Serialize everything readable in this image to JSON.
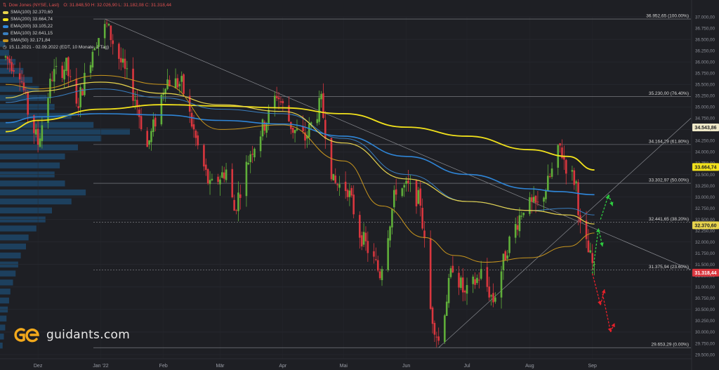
{
  "instrument": {
    "title": "Dow Jones (NYSE, Last)",
    "ohlc": "O: 31.848,50  H: 32.026,90  L: 31.182,08  C: 31.318,44",
    "period": "15.11.2021 - 02.09.2022  (EDT, 10 Monate, 1 Tag)"
  },
  "indicators": [
    {
      "label": "SMA(100)  32.370,60",
      "color": "#e8d44d"
    },
    {
      "label": "SMA(200)  33.664,74",
      "color": "#f2e21c"
    },
    {
      "label": "EMA(200)  33.105,22",
      "color": "#2f86d8"
    },
    {
      "label": "EMA(100)  32.641,15",
      "color": "#3a7fc0"
    },
    {
      "label": "SMA(50)  32.171,84",
      "color": "#c9961e"
    }
  ],
  "logo": {
    "text": "guidants.com",
    "icon": "guidants-logo-icon"
  },
  "colors": {
    "up": "#5fae3a",
    "down": "#d9363e",
    "arrow_up": "#2ecc40",
    "arrow_down": "#e8202a"
  },
  "chart_data": {
    "type": "candlestick",
    "x_range": [
      "2021-11-15",
      "2022-09-02"
    ],
    "ylim": [
      29500,
      37000
    ],
    "x_ticks": [
      {
        "label": "Dez",
        "date": "2021-12-01"
      },
      {
        "label": "Jan '22",
        "date": "2022-01-01"
      },
      {
        "label": "Feb",
        "date": "2022-02-01"
      },
      {
        "label": "Mär",
        "date": "2022-03-01"
      },
      {
        "label": "Apr",
        "date": "2022-04-01"
      },
      {
        "label": "Mai",
        "date": "2022-05-01"
      },
      {
        "label": "Jun",
        "date": "2022-06-01"
      },
      {
        "label": "Jul",
        "date": "2022-07-01"
      },
      {
        "label": "Aug",
        "date": "2022-08-01"
      },
      {
        "label": "Sep",
        "date": "2022-09-01"
      }
    ],
    "y_ticks": [
      {
        "value": 37000,
        "label": "37.000,00"
      },
      {
        "value": 36500,
        "label": "36.500,00"
      },
      {
        "value": 36000,
        "label": "36.000,00"
      },
      {
        "value": 35500,
        "label": "35.500,00"
      },
      {
        "value": 35000,
        "label": "35.000,00"
      },
      {
        "value": 34500,
        "label": "34.500,00"
      },
      {
        "value": 34000,
        "label": "34.000,00"
      },
      {
        "value": 33500,
        "label": "33.500,00"
      },
      {
        "value": 33000,
        "label": "33.000,00"
      },
      {
        "value": 32500,
        "label": "32.500,00"
      },
      {
        "value": 32000,
        "label": "32.000,00"
      },
      {
        "value": 31500,
        "label": "31.500,00"
      },
      {
        "value": 31000,
        "label": "31.000,00"
      },
      {
        "value": 30500,
        "label": "30.500,00"
      },
      {
        "value": 30000,
        "label": "30.000,00"
      },
      {
        "value": 29500,
        "label": "29.500,00"
      }
    ],
    "y_ticks_minor": [
      {
        "value": 36750,
        "label": "36.750,00"
      },
      {
        "value": 36250,
        "label": "36.250,00"
      },
      {
        "value": 35750,
        "label": "35.750,00"
      },
      {
        "value": 35250,
        "label": "35.250,00"
      },
      {
        "value": 34750,
        "label": "34.750,00"
      },
      {
        "value": 34250,
        "label": "34.250,00"
      },
      {
        "value": 33750,
        "label": "33.750,00"
      },
      {
        "value": 33250,
        "label": "33.250,00"
      },
      {
        "value": 32750,
        "label": "32.750,00"
      },
      {
        "value": 32250,
        "label": "32.250,00"
      },
      {
        "value": 31750,
        "label": "31.750,00"
      },
      {
        "value": 31250,
        "label": "31.250,00"
      },
      {
        "value": 30750,
        "label": "30.750,00"
      },
      {
        "value": 30250,
        "label": "30.250,00"
      },
      {
        "value": 29750,
        "label": "29.750,00"
      }
    ],
    "fib_levels": [
      {
        "value": 36952.65,
        "label": "36.952,65 (100.00%)"
      },
      {
        "value": 35230.0,
        "label": "35.230,00 (76.40%)"
      },
      {
        "value": 34164.29,
        "label": "34.164,29 (61.80%)"
      },
      {
        "value": 33302.97,
        "label": "33.302,97 (50.00%)"
      },
      {
        "value": 32441.65,
        "label": "32.441,65 (38.20%)"
      },
      {
        "value": 31375.94,
        "label": "31.375,94 (23.60%)"
      },
      {
        "value": 29653.29,
        "label": "29.653,29 (0.00%)"
      }
    ],
    "price_tags": [
      {
        "value": 34543.86,
        "label": "34.543,86",
        "bg": "#efe9c8",
        "fg": "#222222"
      },
      {
        "value": 33664.74,
        "label": "33.664,74",
        "bg": "#f2e21c",
        "fg": "#222222"
      },
      {
        "value": 32370.6,
        "label": "32.370,60",
        "bg": "#e8d44d",
        "fg": "#222222"
      },
      {
        "value": 31318.44,
        "label": "31.318,44",
        "bg": "#d9363e",
        "fg": "#ffffff"
      }
    ],
    "trendlines": [
      {
        "from": [
          "2022-01-03",
          36952
        ],
        "to": [
          "2022-09-02",
          32300
        ]
      },
      {
        "from": [
          "2022-06-17",
          29653
        ],
        "to": [
          "2022-09-02",
          32800
        ]
      }
    ],
    "ma_series": [
      {
        "name": "SMA(200)",
        "color": "#f2e21c",
        "width": 1.8,
        "points": [
          [
            "2021-11-15",
            34450
          ],
          [
            "2021-12-01",
            34700
          ],
          [
            "2022-01-01",
            34950
          ],
          [
            "2022-02-01",
            35050
          ],
          [
            "2022-03-01",
            35020
          ],
          [
            "2022-04-01",
            34980
          ],
          [
            "2022-05-01",
            34850
          ],
          [
            "2022-06-01",
            34550
          ],
          [
            "2022-07-01",
            34350
          ],
          [
            "2022-08-01",
            34050
          ],
          [
            "2022-08-20",
            33900
          ],
          [
            "2022-09-02",
            33600
          ]
        ]
      },
      {
        "name": "EMA(200)",
        "color": "#2f86d8",
        "width": 1.6,
        "points": [
          [
            "2021-11-15",
            34650
          ],
          [
            "2021-12-01",
            34780
          ],
          [
            "2022-01-01",
            34850
          ],
          [
            "2022-02-01",
            34820
          ],
          [
            "2022-03-01",
            34700
          ],
          [
            "2022-04-01",
            34620
          ],
          [
            "2022-05-01",
            34350
          ],
          [
            "2022-06-01",
            33900
          ],
          [
            "2022-07-01",
            33500
          ],
          [
            "2022-08-01",
            33180
          ],
          [
            "2022-08-15",
            33120
          ],
          [
            "2022-09-02",
            33050
          ]
        ]
      },
      {
        "name": "EMA(100)",
        "color": "#3a7fc0",
        "width": 1.0,
        "points": [
          [
            "2021-11-15",
            35100
          ],
          [
            "2021-12-01",
            35200
          ],
          [
            "2022-01-01",
            35400
          ],
          [
            "2022-02-01",
            35200
          ],
          [
            "2022-03-01",
            34950
          ],
          [
            "2022-04-01",
            34850
          ],
          [
            "2022-05-01",
            34300
          ],
          [
            "2022-06-01",
            33500
          ],
          [
            "2022-07-01",
            32900
          ],
          [
            "2022-08-01",
            32700
          ],
          [
            "2022-08-20",
            32750
          ],
          [
            "2022-09-02",
            32600
          ]
        ]
      },
      {
        "name": "SMA(100)",
        "color": "#e8d44d",
        "width": 1.2,
        "points": [
          [
            "2021-11-15",
            35200
          ],
          [
            "2021-12-01",
            35350
          ],
          [
            "2022-01-01",
            35550
          ],
          [
            "2022-02-01",
            35300
          ],
          [
            "2022-03-01",
            35050
          ],
          [
            "2022-04-01",
            34900
          ],
          [
            "2022-05-01",
            34200
          ],
          [
            "2022-06-01",
            33400
          ],
          [
            "2022-07-01",
            32900
          ],
          [
            "2022-08-01",
            32700
          ],
          [
            "2022-08-20",
            32600
          ],
          [
            "2022-09-02",
            32400
          ]
        ]
      },
      {
        "name": "SMA(50)",
        "color": "#c9961e",
        "width": 1.0,
        "points": [
          [
            "2021-11-15",
            35500
          ],
          [
            "2021-12-01",
            35400
          ],
          [
            "2022-01-01",
            35700
          ],
          [
            "2022-02-01",
            35500
          ],
          [
            "2022-03-01",
            34500
          ],
          [
            "2022-04-01",
            34600
          ],
          [
            "2022-05-01",
            33800
          ],
          [
            "2022-05-20",
            32800
          ],
          [
            "2022-06-10",
            32100
          ],
          [
            "2022-06-25",
            31700
          ],
          [
            "2022-07-10",
            31550
          ],
          [
            "2022-08-01",
            31650
          ],
          [
            "2022-08-20",
            31900
          ],
          [
            "2022-09-02",
            32200
          ]
        ]
      }
    ],
    "price_path": [
      [
        "2021-11-15",
        36100
      ],
      [
        "2021-11-22",
        35800
      ],
      [
        "2021-11-26",
        34900
      ],
      [
        "2021-12-01",
        34200
      ],
      [
        "2021-12-08",
        35700
      ],
      [
        "2021-12-15",
        35900
      ],
      [
        "2021-12-20",
        34950
      ],
      [
        "2021-12-29",
        36450
      ],
      [
        "2022-01-04",
        36800
      ],
      [
        "2022-01-10",
        36100
      ],
      [
        "2022-01-18",
        35200
      ],
      [
        "2022-01-24",
        34100
      ],
      [
        "2022-01-28",
        34700
      ],
      [
        "2022-02-02",
        35600
      ],
      [
        "2022-02-10",
        35500
      ],
      [
        "2022-02-18",
        34100
      ],
      [
        "2022-02-24",
        33200
      ],
      [
        "2022-03-04",
        33600
      ],
      [
        "2022-03-08",
        32700
      ],
      [
        "2022-03-16",
        34000
      ],
      [
        "2022-03-25",
        34800
      ],
      [
        "2022-03-29",
        35300
      ],
      [
        "2022-04-06",
        34500
      ],
      [
        "2022-04-12",
        34300
      ],
      [
        "2022-04-20",
        35100
      ],
      [
        "2022-04-26",
        33300
      ],
      [
        "2022-05-03",
        33200
      ],
      [
        "2022-05-09",
        32200
      ],
      [
        "2022-05-19",
        31300
      ],
      [
        "2022-05-27",
        33200
      ],
      [
        "2022-06-02",
        33200
      ],
      [
        "2022-06-08",
        32900
      ],
      [
        "2022-06-13",
        30500
      ],
      [
        "2022-06-17",
        29800
      ],
      [
        "2022-06-24",
        31500
      ],
      [
        "2022-06-30",
        30800
      ],
      [
        "2022-07-08",
        31300
      ],
      [
        "2022-07-14",
        30700
      ],
      [
        "2022-07-21",
        31900
      ],
      [
        "2022-07-29",
        32800
      ],
      [
        "2022-08-05",
        32800
      ],
      [
        "2022-08-10",
        33300
      ],
      [
        "2022-08-16",
        34100
      ],
      [
        "2022-08-19",
        33700
      ],
      [
        "2022-08-24",
        33300
      ],
      [
        "2022-08-26",
        32300
      ],
      [
        "2022-09-01",
        31500
      ],
      [
        "2022-09-02",
        31318
      ]
    ],
    "volume_profile": [
      [
        36400,
        0.04
      ],
      [
        36200,
        0.07
      ],
      [
        36000,
        0.12
      ],
      [
        35800,
        0.18
      ],
      [
        35600,
        0.25
      ],
      [
        35400,
        0.3
      ],
      [
        35200,
        0.36
      ],
      [
        35000,
        0.42
      ],
      [
        34800,
        0.55
      ],
      [
        34600,
        0.72
      ],
      [
        34450,
        1.0
      ],
      [
        34300,
        0.78
      ],
      [
        34100,
        0.6
      ],
      [
        33900,
        0.5
      ],
      [
        33700,
        0.46
      ],
      [
        33500,
        0.42
      ],
      [
        33300,
        0.5
      ],
      [
        33100,
        0.66
      ],
      [
        32900,
        0.55
      ],
      [
        32700,
        0.4
      ],
      [
        32500,
        0.35
      ],
      [
        32300,
        0.28
      ],
      [
        32100,
        0.22
      ],
      [
        31900,
        0.2
      ],
      [
        31700,
        0.16
      ],
      [
        31500,
        0.14
      ],
      [
        31300,
        0.12
      ],
      [
        31100,
        0.1
      ],
      [
        30900,
        0.08
      ],
      [
        30700,
        0.07
      ],
      [
        30500,
        0.06
      ],
      [
        30300,
        0.05
      ],
      [
        30100,
        0.04
      ],
      [
        29900,
        0.03
      ],
      [
        29700,
        0.02
      ]
    ],
    "arrows": [
      {
        "color": "#2ecc40",
        "points": [
          [
            "2022-09-01",
            31300
          ],
          [
            "2022-09-04",
            32300
          ],
          [
            "2022-09-06",
            31900
          ]
        ]
      },
      {
        "color": "#2ecc40",
        "points": [
          [
            "2022-09-05",
            32500
          ],
          [
            "2022-09-09",
            33050
          ],
          [
            "2022-09-11",
            32800
          ]
        ]
      },
      {
        "color": "#e8202a",
        "points": [
          [
            "2022-09-01",
            31300
          ],
          [
            "2022-09-05",
            30600
          ],
          [
            "2022-09-07",
            30950
          ]
        ]
      },
      {
        "color": "#e8202a",
        "points": [
          [
            "2022-09-06",
            30850
          ],
          [
            "2022-09-10",
            30000
          ],
          [
            "2022-09-12",
            30200
          ]
        ]
      }
    ]
  }
}
